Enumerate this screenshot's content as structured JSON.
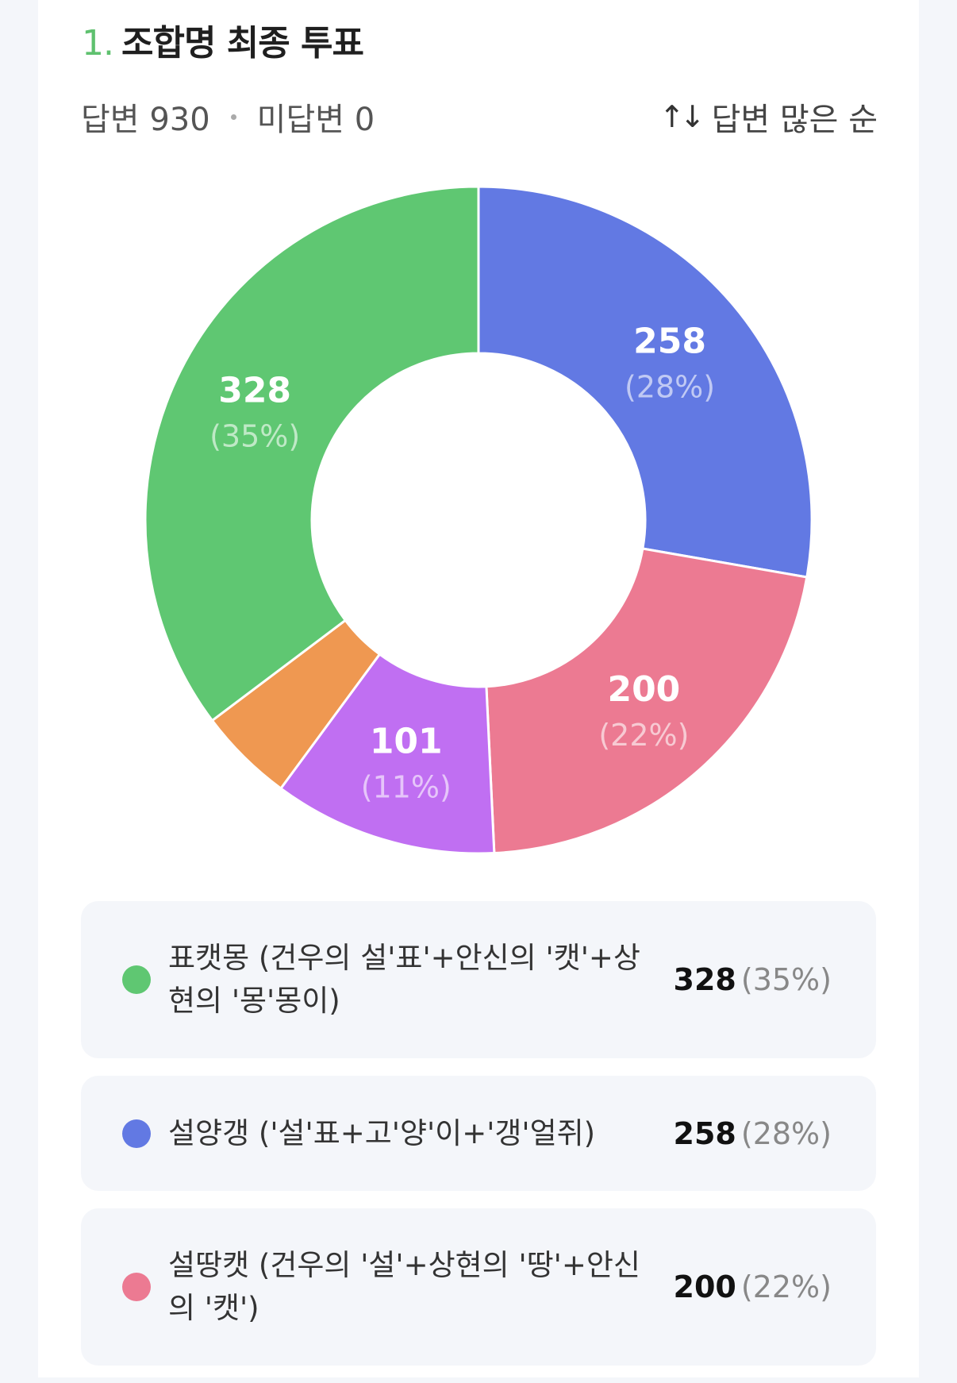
{
  "question": {
    "number": "1.",
    "title": "조합명 최종 투표",
    "answered": "답변 930",
    "unanswered": "미답변 0",
    "sort_label": "답변 많은 순"
  },
  "colors": {
    "green": "#5fc772",
    "blue": "#6279e3",
    "pink": "#ec7a92",
    "purple": "#c06ff2",
    "orange": "#ef9851"
  },
  "chart_data": {
    "type": "pie",
    "total": 930,
    "slices": [
      {
        "label": "설양갱 ('설'표+고'양'이+'갱'얼쥐)",
        "value": 258,
        "percent": "(28%)",
        "color": "#6279e3"
      },
      {
        "label": "설땅캣 (건우의 '설'+상현의 '땅'+안신의 '캣')",
        "value": 200,
        "percent": "(22%)",
        "color": "#ec7a92"
      },
      {
        "label": "",
        "value": 101,
        "percent": "(11%)",
        "color": "#c06ff2"
      },
      {
        "label": "",
        "value": 43,
        "percent": "",
        "color": "#ef9851"
      },
      {
        "label": "표캣몽 (건우의 설'표'+안신의 '캣'+상현의 '몽'몽이)",
        "value": 328,
        "percent": "(35%)",
        "color": "#5fc772"
      }
    ]
  },
  "legend": [
    {
      "label": "표캣몽 (건우의 설'표'+안신의 '캣'+상현의 '몽'몽이)",
      "count": "328",
      "pct": "(35%)",
      "color": "#5fc772"
    },
    {
      "label": "설양갱 ('설'표+고'양'이+'갱'얼쥐)",
      "count": "258",
      "pct": "(28%)",
      "color": "#6279e3"
    },
    {
      "label": "설땅캣 (건우의 '설'+상현의 '땅'+안신의 '캣')",
      "count": "200",
      "pct": "(22%)",
      "color": "#ec7a92"
    }
  ]
}
